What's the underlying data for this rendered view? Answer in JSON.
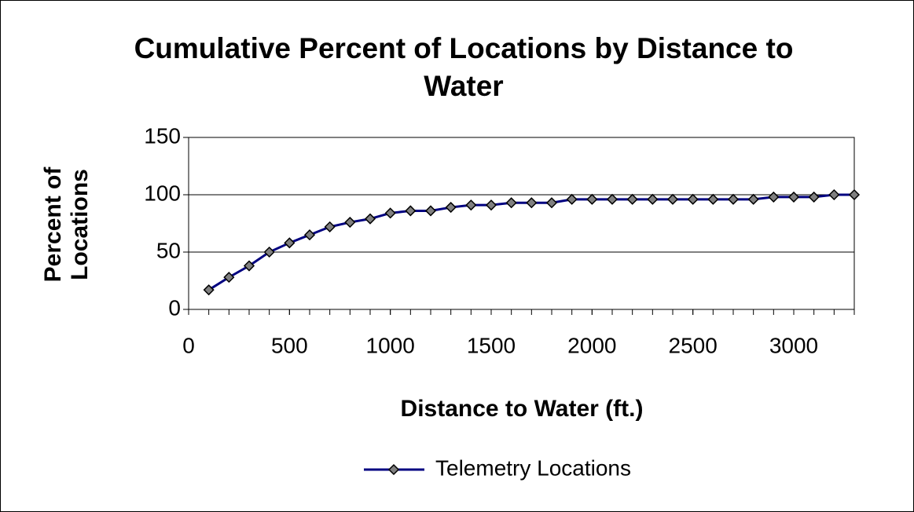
{
  "chart_data": {
    "type": "line",
    "title": "Cumulative Percent of Locations by Distance to Water",
    "x_label": "Distance to Water (ft.)",
    "y_label": "Percent of Locations",
    "x": [
      100,
      200,
      300,
      400,
      500,
      600,
      700,
      800,
      900,
      1000,
      1100,
      1200,
      1300,
      1400,
      1500,
      1600,
      1700,
      1800,
      1900,
      2000,
      2100,
      2200,
      2300,
      2400,
      2500,
      2600,
      2700,
      2800,
      2900,
      3000,
      3100,
      3200,
      3300
    ],
    "series": [
      {
        "name": "Telemetry Locations",
        "color": "#000080",
        "values": [
          17,
          28,
          38,
          50,
          58,
          65,
          72,
          76,
          79,
          84,
          86,
          86,
          89,
          91,
          91,
          93,
          93,
          93,
          96,
          96,
          96,
          96,
          96,
          96,
          96,
          96,
          96,
          96,
          98,
          98,
          98,
          100,
          100
        ]
      }
    ],
    "xlim": [
      0,
      3300
    ],
    "xticks": [
      0,
      500,
      1000,
      1500,
      2000,
      2500,
      3000
    ],
    "ylim": [
      0,
      150
    ],
    "yticks": [
      0,
      50,
      100,
      150
    ],
    "grid": true,
    "legend": "bottom"
  }
}
